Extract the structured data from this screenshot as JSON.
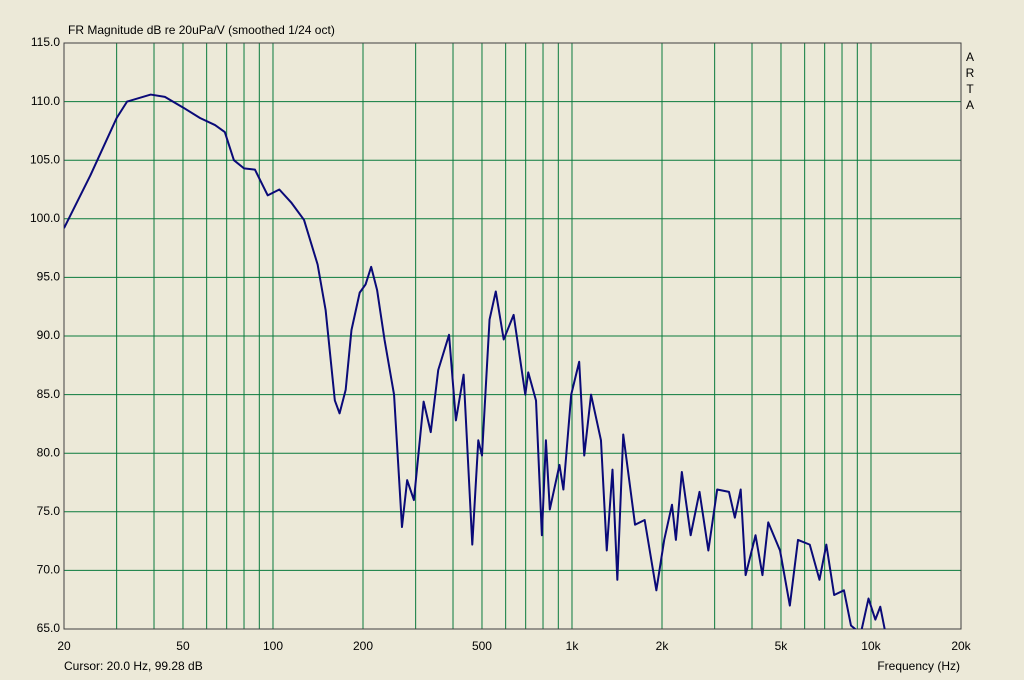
{
  "chart_data": {
    "type": "line",
    "title": "FR Magnitude dB re 20uPa/V (smoothed 1/24 oct)",
    "side_label": "ARTA",
    "status": "Cursor: 20.0 Hz, 99.28 dB",
    "xlabel": "Frequency (Hz)",
    "log_x": true,
    "grid": true,
    "xlim": [
      20,
      20000
    ],
    "ylim": [
      65,
      115
    ],
    "xticks": [
      20,
      50,
      100,
      200,
      500,
      {
        "value": 1000,
        "label": "1k"
      },
      {
        "value": 2000,
        "label": "2k"
      },
      {
        "value": 5000,
        "label": "5k"
      },
      {
        "value": 10000,
        "label": "10k"
      },
      {
        "value": 20000,
        "label": "20k"
      }
    ],
    "xminor_ticks": [
      30,
      40,
      60,
      70,
      80,
      90,
      300,
      400,
      600,
      700,
      800,
      900,
      3000,
      4000,
      6000,
      7000,
      8000,
      9000
    ],
    "yticks": [
      {
        "value": 65,
        "label": "65.0"
      },
      {
        "value": 70,
        "label": "70.0"
      },
      {
        "value": 75,
        "label": "75.0"
      },
      {
        "value": 80,
        "label": "80.0"
      },
      {
        "value": 85,
        "label": "85.0"
      },
      {
        "value": 90,
        "label": "90.0"
      },
      {
        "value": 95,
        "label": "95.0"
      },
      {
        "value": 100,
        "label": "100.0"
      },
      {
        "value": 105,
        "label": "105.0"
      },
      {
        "value": 110,
        "label": "110.0"
      },
      {
        "value": 115,
        "label": "115.0"
      }
    ],
    "series": [
      {
        "name": "FR Magnitude",
        "color": "#0a0a78",
        "x": [
          20,
          24.5,
          30,
          32.5,
          39,
          43.5,
          50,
          57,
          64,
          69,
          74,
          80,
          87,
          96,
          105,
          115,
          127,
          141,
          150,
          161,
          167,
          175,
          183,
          195,
          204,
          213,
          223,
          236,
          254,
          270,
          281,
          296,
          319,
          337,
          357,
          388,
          409,
          434,
          464,
          486,
          500,
          530,
          556,
          591,
          638,
          698,
          714,
          758,
          793,
          818,
          843,
          908,
          936,
          994,
          1057,
          1099,
          1158,
          1250,
          1307,
          1366,
          1418,
          1484,
          1625,
          1750,
          1915,
          2034,
          2160,
          2226,
          2330,
          2494,
          2670,
          2858,
          3059,
          3350,
          3505,
          3666,
          3808,
          4110,
          4335,
          4533,
          4963,
          5353,
          5700,
          6240,
          6725,
          7090,
          7530,
          8120,
          8570,
          9240,
          9810,
          10340,
          10740,
          11150
        ],
        "values": [
          99.2,
          103.7,
          108.6,
          110,
          110.6,
          110.4,
          109.5,
          108.6,
          108,
          107.4,
          105,
          104.3,
          104.2,
          102,
          102.5,
          101.4,
          99.9,
          96.1,
          92.2,
          84.5,
          83.4,
          85.4,
          90.5,
          93.7,
          94.4,
          95.9,
          93.9,
          89.7,
          85,
          73.7,
          77.7,
          76,
          84.4,
          81.8,
          87.1,
          90.1,
          82.8,
          86.7,
          72.2,
          81.1,
          79.8,
          91.4,
          93.8,
          89.7,
          91.8,
          85,
          86.9,
          84.5,
          73,
          81.1,
          75.2,
          79,
          76.9,
          85,
          87.8,
          79.8,
          85,
          81.1,
          71.7,
          78.6,
          69.2,
          81.6,
          73.9,
          74.3,
          68.3,
          72.6,
          75.6,
          72.6,
          78.4,
          73,
          76.7,
          71.7,
          76.9,
          76.7,
          74.5,
          76.9,
          69.6,
          73,
          69.6,
          74.1,
          71.7,
          67,
          72.6,
          72.2,
          69.2,
          72.2,
          67.9,
          68.3,
          65.3,
          64.6,
          67.6,
          65.8,
          66.9,
          64.8
        ]
      }
    ]
  }
}
